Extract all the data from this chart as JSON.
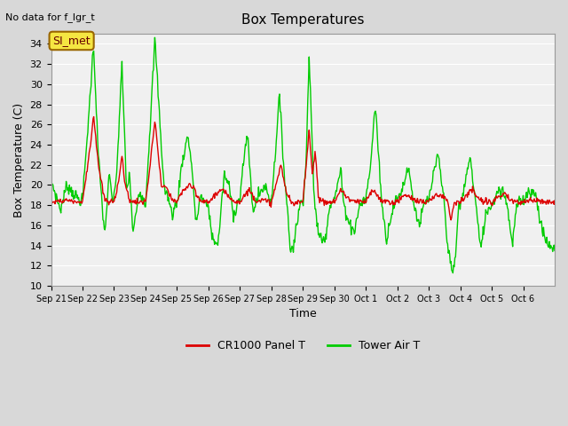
{
  "title": "Box Temperatures",
  "xlabel": "Time",
  "ylabel": "Box Temperature (C)",
  "top_left_text": "No data for f_lgr_t",
  "annotation_label": "SI_met",
  "ylim": [
    10,
    35
  ],
  "yticks": [
    10,
    12,
    14,
    16,
    18,
    20,
    22,
    24,
    26,
    28,
    30,
    32,
    34
  ],
  "xtick_labels": [
    "Sep 21",
    "Sep 22",
    "Sep 23",
    "Sep 24",
    "Sep 25",
    "Sep 26",
    "Sep 27",
    "Sep 28",
    "Sep 29",
    "Sep 30",
    "Oct 1",
    "Oct 2",
    "Oct 3",
    "Oct 4",
    "Oct 5",
    "Oct 6"
  ],
  "legend": [
    {
      "label": "CR1000 Panel T",
      "color": "#dd0000"
    },
    {
      "label": "Tower Air T",
      "color": "#00cc00"
    }
  ],
  "panel_color": "#dd0000",
  "tower_color": "#00cc00",
  "plot_bg_color": "#f0f0f0",
  "grid_color": "#ffffff"
}
